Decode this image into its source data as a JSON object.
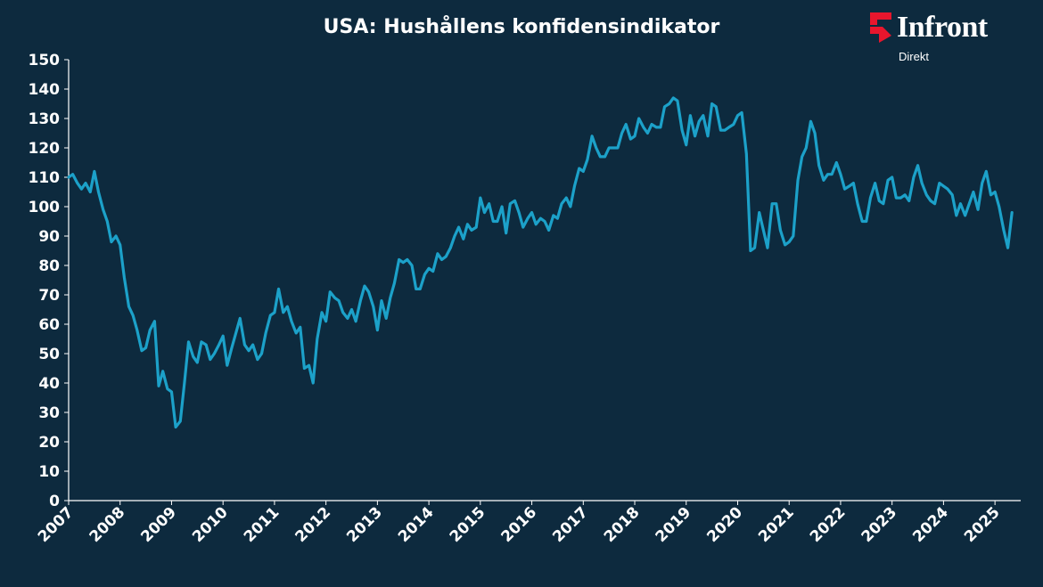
{
  "title": "USA: Hushållens konfidensindikator",
  "brand": {
    "name": "Infront",
    "sub": "Direkt",
    "color": "#e8162d"
  },
  "colors": {
    "background": "#0d2a3e",
    "line": "#1ca1c9",
    "text": "#ffffff"
  },
  "chart_data": {
    "type": "line",
    "title": "USA: Hushållens konfidensindikator",
    "xlabel": "",
    "ylabel": "",
    "ylim": [
      0,
      150
    ],
    "yticks": [
      0,
      10,
      20,
      30,
      40,
      50,
      60,
      70,
      80,
      90,
      100,
      110,
      120,
      130,
      140,
      150
    ],
    "xlim": [
      2007,
      2025.5
    ],
    "xticks": [
      "2007",
      "2008",
      "2009",
      "2010",
      "2011",
      "2012",
      "2013",
      "2014",
      "2015",
      "2016",
      "2017",
      "2018",
      "2019",
      "2020",
      "2021",
      "2022",
      "2023",
      "2024",
      "2025"
    ],
    "grid": false,
    "series": [
      {
        "x": [
          2007.0,
          2007.08,
          2007.17,
          2007.25,
          2007.33,
          2007.42,
          2007.5,
          2007.58,
          2007.67,
          2007.75,
          2007.83,
          2007.92,
          2008.0,
          2008.08,
          2008.17,
          2008.25,
          2008.33,
          2008.42,
          2008.5,
          2008.58,
          2008.67,
          2008.75,
          2008.83,
          2008.92,
          2009.0,
          2009.08,
          2009.17,
          2009.25,
          2009.33,
          2009.42,
          2009.5,
          2009.58,
          2009.67,
          2009.75,
          2009.83,
          2009.92,
          2010.0,
          2010.08,
          2010.17,
          2010.25,
          2010.33,
          2010.42,
          2010.5,
          2010.58,
          2010.67,
          2010.75,
          2010.83,
          2010.92,
          2011.0,
          2011.08,
          2011.17,
          2011.25,
          2011.33,
          2011.42,
          2011.5,
          2011.58,
          2011.67,
          2011.75,
          2011.83,
          2011.92,
          2012.0,
          2012.08,
          2012.17,
          2012.25,
          2012.33,
          2012.42,
          2012.5,
          2012.58,
          2012.67,
          2012.75,
          2012.83,
          2012.92,
          2013.0,
          2013.08,
          2013.17,
          2013.25,
          2013.33,
          2013.42,
          2013.5,
          2013.58,
          2013.67,
          2013.75,
          2013.83,
          2013.92,
          2014.0,
          2014.08,
          2014.17,
          2014.25,
          2014.33,
          2014.42,
          2014.5,
          2014.58,
          2014.67,
          2014.75,
          2014.83,
          2014.92,
          2015.0,
          2015.08,
          2015.17,
          2015.25,
          2015.33,
          2015.42,
          2015.5,
          2015.58,
          2015.67,
          2015.75,
          2015.83,
          2015.92,
          2016.0,
          2016.08,
          2016.17,
          2016.25,
          2016.33,
          2016.42,
          2016.5,
          2016.58,
          2016.67,
          2016.75,
          2016.83,
          2016.92,
          2017.0,
          2017.08,
          2017.17,
          2017.25,
          2017.33,
          2017.42,
          2017.5,
          2017.58,
          2017.67,
          2017.75,
          2017.83,
          2017.92,
          2018.0,
          2018.08,
          2018.17,
          2018.25,
          2018.33,
          2018.42,
          2018.5,
          2018.58,
          2018.67,
          2018.75,
          2018.83,
          2018.92,
          2019.0,
          2019.08,
          2019.17,
          2019.25,
          2019.33,
          2019.42,
          2019.5,
          2019.58,
          2019.67,
          2019.75,
          2019.83,
          2019.92,
          2020.0,
          2020.08,
          2020.17,
          2020.25,
          2020.33,
          2020.42,
          2020.5,
          2020.58,
          2020.67,
          2020.75,
          2020.83,
          2020.92,
          2021.0,
          2021.08,
          2021.17,
          2021.25,
          2021.33,
          2021.42,
          2021.5,
          2021.58,
          2021.67,
          2021.75,
          2021.83,
          2021.92,
          2022.0,
          2022.08,
          2022.17,
          2022.25,
          2022.33,
          2022.42,
          2022.5,
          2022.58,
          2022.67,
          2022.75,
          2022.83,
          2022.92,
          2023.0,
          2023.08,
          2023.17,
          2023.25,
          2023.33,
          2023.42,
          2023.5,
          2023.58,
          2023.67,
          2023.75,
          2023.83,
          2023.92,
          2024.0,
          2024.08,
          2024.17,
          2024.25,
          2024.33,
          2024.42,
          2024.5,
          2024.58,
          2024.67,
          2024.75,
          2024.83,
          2024.92,
          2025.0,
          2025.08,
          2025.17,
          2025.25,
          2025.33
        ],
        "values": [
          110,
          111,
          108,
          106,
          108,
          105,
          112,
          105,
          99,
          95,
          88,
          90,
          87,
          76,
          66,
          63,
          58,
          51,
          52,
          58,
          61,
          39,
          44,
          38,
          37,
          25,
          27,
          40,
          54,
          49,
          47,
          54,
          53,
          48,
          50,
          53,
          56,
          46,
          52,
          57,
          62,
          53,
          51,
          53,
          48,
          50,
          57,
          63,
          64,
          72,
          64,
          66,
          61,
          57,
          59,
          45,
          46,
          40,
          55,
          64,
          61,
          71,
          69,
          68,
          64,
          62,
          65,
          61,
          68,
          73,
          71,
          66,
          58,
          68,
          62,
          69,
          74,
          82,
          81,
          82,
          80,
          72,
          72,
          77,
          79,
          78,
          84,
          82,
          83,
          86,
          90,
          93,
          89,
          94,
          92,
          93,
          103,
          98,
          101,
          95,
          95,
          100,
          91,
          101,
          102,
          98,
          93,
          96,
          98,
          94,
          96,
          95,
          92,
          97,
          96,
          101,
          103,
          100,
          107,
          113,
          112,
          116,
          124,
          120,
          117,
          117,
          120,
          120,
          120,
          125,
          128,
          123,
          124,
          130,
          127,
          125,
          128,
          127,
          127,
          134,
          135,
          137,
          136,
          126,
          121,
          131,
          124,
          129,
          131,
          124,
          135,
          134,
          126,
          126,
          127,
          128,
          131,
          132,
          118,
          85,
          86,
          98,
          92,
          86,
          101,
          101,
          92,
          87,
          88,
          90,
          109,
          117,
          120,
          129,
          125,
          114,
          109,
          111,
          111,
          115,
          111,
          106,
          107,
          108,
          101,
          95,
          95,
          103,
          108,
          102,
          101,
          109,
          110,
          103,
          103,
          104,
          102,
          110,
          114,
          108,
          104,
          102,
          101,
          108,
          107,
          106,
          104,
          97,
          101,
          97,
          101,
          105,
          99,
          108,
          112,
          104,
          105,
          100,
          92,
          86,
          98
        ]
      }
    ]
  }
}
